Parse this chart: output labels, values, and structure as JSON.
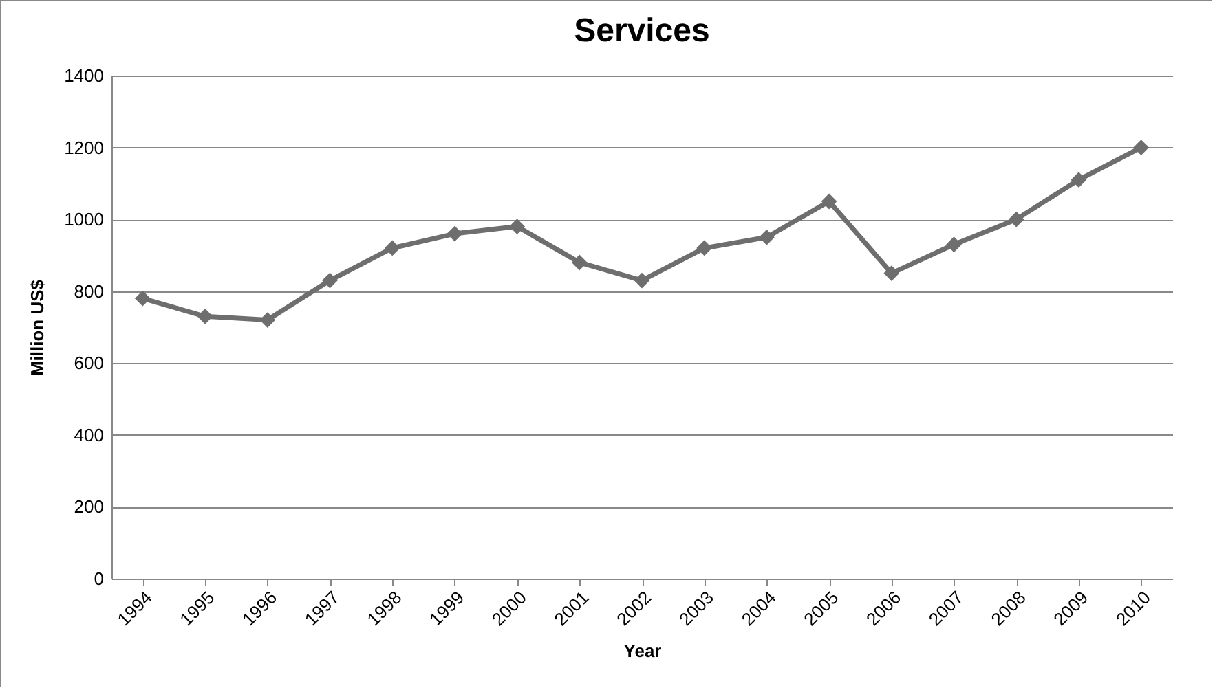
{
  "chart_data": {
    "type": "line",
    "title": "Services",
    "xlabel": "Year",
    "ylabel": "Million US$",
    "categories": [
      "1994",
      "1995",
      "1996",
      "1997",
      "1998",
      "1999",
      "2000",
      "2001",
      "2002",
      "2003",
      "2004",
      "2005",
      "2006",
      "2007",
      "2008",
      "2009",
      "2010"
    ],
    "series": [
      {
        "color": "#6e6e6e",
        "values": [
          780,
          730,
          720,
          830,
          920,
          960,
          980,
          880,
          830,
          920,
          950,
          1050,
          850,
          930,
          1000,
          1110,
          1200
        ]
      }
    ],
    "ylim": [
      0,
      1400
    ],
    "yticks": [
      0,
      200,
      400,
      600,
      800,
      1000,
      1200,
      1400
    ],
    "grid": "y",
    "marker": "diamond",
    "line_style": "solid",
    "legend": false
  }
}
